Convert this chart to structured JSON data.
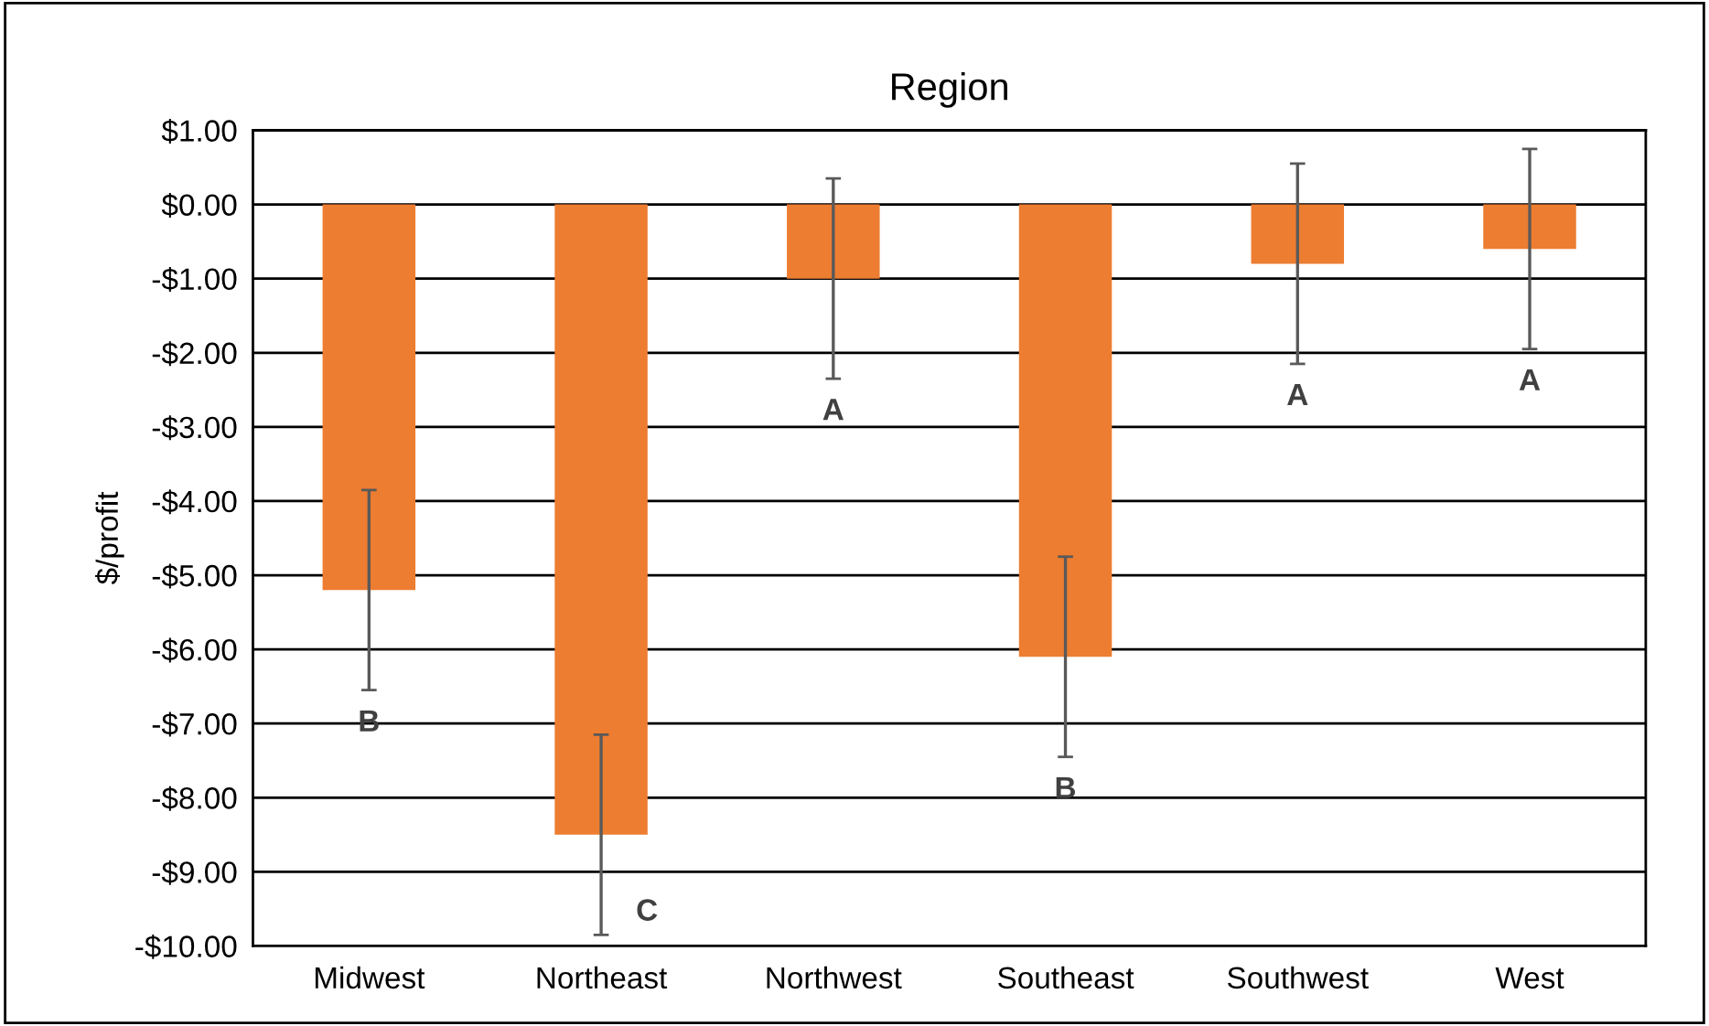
{
  "chart_data": {
    "type": "bar",
    "title": "Region",
    "ylabel": "$/profit",
    "categories": [
      "Midwest",
      "Northeast",
      "Northwest",
      "Southeast",
      "Southwest",
      "West"
    ],
    "values": [
      -5.2,
      -8.5,
      -1.0,
      -6.1,
      -0.8,
      -0.6
    ],
    "errors": [
      1.35,
      1.35,
      1.35,
      1.35,
      1.35,
      1.35
    ],
    "color": "#ed7d31",
    "ylim": [
      -10,
      1
    ],
    "yticks": [
      {
        "value": 1,
        "label": "$1.00"
      },
      {
        "value": 0,
        "label": "$0.00"
      },
      {
        "value": -1,
        "label": "-$1.00"
      },
      {
        "value": -2,
        "label": "-$2.00"
      },
      {
        "value": -3,
        "label": "-$3.00"
      },
      {
        "value": -4,
        "label": "-$4.00"
      },
      {
        "value": -5,
        "label": "-$5.00"
      },
      {
        "value": -6,
        "label": "-$6.00"
      },
      {
        "value": -7,
        "label": "-$7.00"
      },
      {
        "value": -8,
        "label": "-$8.00"
      },
      {
        "value": -9,
        "label": "-$9.00"
      },
      {
        "value": -10,
        "label": "-$10.00"
      }
    ],
    "grid": "y",
    "annotations": [
      "B",
      "C",
      "A",
      "B",
      "A",
      "A"
    ]
  }
}
